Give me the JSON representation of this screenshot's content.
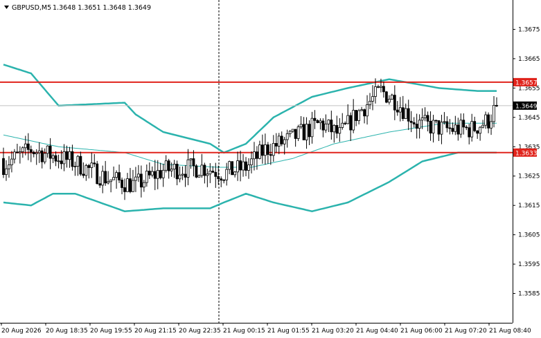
{
  "header": {
    "symbol": "GBPUSD,M5",
    "ohlc": "1.3648 1.3651 1.3648 1.3649"
  },
  "colors": {
    "up_candle": "#ffffff",
    "down_candle": "#000000",
    "candle_outline": "#000000",
    "bollinger_bands": "#2bb3ad",
    "level_line": "#e0231b",
    "price_line": "#c0c0c0",
    "background": "#ffffff"
  },
  "chart_data": {
    "type": "candlestick",
    "title": "GBPUSD,M5",
    "ylim": [
      1.3575,
      1.3685
    ],
    "y_ticks": [
      "1.3675",
      "1.3665",
      "1.3655",
      "1.3645",
      "1.3635",
      "1.3625",
      "1.3615",
      "1.3605",
      "1.3595",
      "1.3585"
    ],
    "x_ticks": [
      "20 Aug 2026",
      "20 Aug 18:35",
      "20 Aug 19:55",
      "20 Aug 21:15",
      "20 Aug 22:35",
      "21 Aug 00:15",
      "21 Aug 01:55",
      "21 Aug 03:20",
      "21 Aug 04:40",
      "21 Aug 06:00",
      "21 Aug 07:20",
      "21 Aug 08:40"
    ],
    "levels": [
      {
        "value": 1.3657,
        "label": "1.3657",
        "color": "#e0231b"
      },
      {
        "value": 1.3633,
        "label": "1.3633",
        "color": "#e0231b"
      }
    ],
    "current_price": {
      "value": 1.3649,
      "label": "1.3649"
    },
    "session_separator": "21 Aug 00:15",
    "candle_count": 180,
    "close_anchors": [
      [
        0,
        1.3629
      ],
      [
        10,
        1.3634
      ],
      [
        25,
        1.363
      ],
      [
        38,
        1.3624
      ],
      [
        48,
        1.3622
      ],
      [
        58,
        1.3627
      ],
      [
        72,
        1.3628
      ],
      [
        80,
        1.3626
      ],
      [
        88,
        1.3628
      ],
      [
        95,
        1.3634
      ],
      [
        105,
        1.3638
      ],
      [
        115,
        1.3643
      ],
      [
        122,
        1.3639
      ],
      [
        128,
        1.3646
      ],
      [
        137,
        1.3654
      ],
      [
        142,
        1.3651
      ],
      [
        150,
        1.3643
      ],
      [
        160,
        1.3641
      ],
      [
        170,
        1.3641
      ],
      [
        176,
        1.3644
      ],
      [
        179,
        1.3649
      ]
    ],
    "bollinger": {
      "upper": [
        [
          0,
          1.3663
        ],
        [
          10,
          1.366
        ],
        [
          20,
          1.3649
        ],
        [
          44,
          1.365
        ],
        [
          48,
          1.3646
        ],
        [
          58,
          1.364
        ],
        [
          75,
          1.3636
        ],
        [
          80,
          1.3633
        ],
        [
          88,
          1.3636
        ],
        [
          98,
          1.3645
        ],
        [
          112,
          1.3652
        ],
        [
          125,
          1.3655
        ],
        [
          140,
          1.3658
        ],
        [
          158,
          1.3655
        ],
        [
          172,
          1.3654
        ],
        [
          179,
          1.3654
        ]
      ],
      "middle": [
        [
          0,
          1.3639
        ],
        [
          20,
          1.3635
        ],
        [
          44,
          1.3633
        ],
        [
          58,
          1.3629
        ],
        [
          78,
          1.3628
        ],
        [
          90,
          1.3628
        ],
        [
          105,
          1.3631
        ],
        [
          120,
          1.3636
        ],
        [
          140,
          1.364
        ],
        [
          160,
          1.3643
        ],
        [
          172,
          1.3643
        ],
        [
          179,
          1.3643
        ]
      ],
      "lower": [
        [
          0,
          1.3616
        ],
        [
          10,
          1.3615
        ],
        [
          18,
          1.3619
        ],
        [
          26,
          1.3619
        ],
        [
          44,
          1.3613
        ],
        [
          58,
          1.3614
        ],
        [
          75,
          1.3614
        ],
        [
          80,
          1.3616
        ],
        [
          88,
          1.3619
        ],
        [
          98,
          1.3616
        ],
        [
          112,
          1.3613
        ],
        [
          125,
          1.3616
        ],
        [
          140,
          1.3623
        ],
        [
          152,
          1.363
        ],
        [
          165,
          1.3633
        ],
        [
          179,
          1.3633
        ]
      ]
    }
  }
}
